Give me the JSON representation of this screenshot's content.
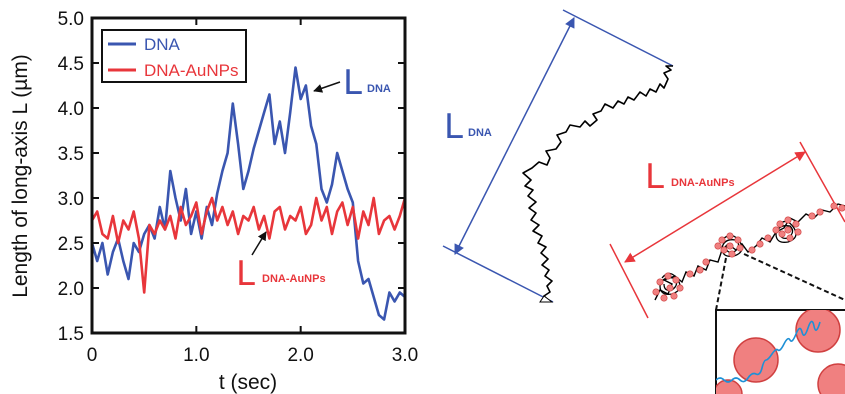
{
  "chart_data": {
    "type": "line",
    "xlabel": "t (sec)",
    "ylabel": "Length of long-axis L (µm)",
    "xlim": [
      0,
      3.0
    ],
    "ylim": [
      1.5,
      5.0
    ],
    "x_ticks": [
      "0",
      "1.0",
      "2.0",
      "3.0"
    ],
    "y_ticks": [
      "1.5",
      "2.0",
      "2.5",
      "3.0",
      "3.5",
      "4.0",
      "4.5",
      "5.0"
    ],
    "grid": false,
    "legend_position": "top-left",
    "series": [
      {
        "name": "DNA",
        "color": "#3a56b0",
        "x": [
          0.0,
          0.05,
          0.1,
          0.15,
          0.2,
          0.25,
          0.3,
          0.35,
          0.4,
          0.45,
          0.5,
          0.55,
          0.6,
          0.65,
          0.7,
          0.75,
          0.8,
          0.85,
          0.9,
          0.95,
          1.0,
          1.05,
          1.1,
          1.15,
          1.2,
          1.25,
          1.3,
          1.35,
          1.4,
          1.45,
          1.5,
          1.55,
          1.6,
          1.65,
          1.7,
          1.75,
          1.8,
          1.85,
          1.9,
          1.95,
          2.0,
          2.05,
          2.1,
          2.15,
          2.2,
          2.25,
          2.3,
          2.35,
          2.4,
          2.45,
          2.5,
          2.55,
          2.6,
          2.65,
          2.7,
          2.75,
          2.8,
          2.85,
          2.9,
          2.95,
          3.0
        ],
        "y": [
          2.5,
          2.3,
          2.5,
          2.15,
          2.4,
          2.55,
          2.3,
          2.1,
          2.5,
          2.4,
          2.6,
          2.7,
          2.55,
          2.9,
          2.65,
          3.3,
          3.0,
          2.75,
          3.1,
          2.6,
          2.85,
          2.55,
          2.9,
          2.7,
          3.05,
          3.3,
          3.5,
          4.05,
          3.6,
          3.1,
          3.3,
          3.55,
          3.75,
          3.95,
          4.15,
          3.6,
          3.85,
          3.5,
          3.95,
          4.45,
          4.1,
          4.25,
          3.8,
          3.6,
          3.1,
          2.95,
          3.15,
          3.5,
          3.3,
          3.1,
          2.95,
          2.3,
          2.05,
          2.1,
          1.9,
          1.7,
          1.65,
          1.95,
          1.85,
          1.95,
          1.9
        ]
      },
      {
        "name": "DNA-AuNPs",
        "color": "#e8363b",
        "x": [
          0.0,
          0.05,
          0.1,
          0.15,
          0.2,
          0.25,
          0.3,
          0.35,
          0.4,
          0.45,
          0.5,
          0.55,
          0.6,
          0.65,
          0.7,
          0.75,
          0.8,
          0.85,
          0.9,
          0.95,
          1.0,
          1.05,
          1.1,
          1.15,
          1.2,
          1.25,
          1.3,
          1.35,
          1.4,
          1.45,
          1.5,
          1.55,
          1.6,
          1.65,
          1.7,
          1.75,
          1.8,
          1.85,
          1.9,
          1.95,
          2.0,
          2.05,
          2.1,
          2.15,
          2.2,
          2.25,
          2.3,
          2.35,
          2.4,
          2.45,
          2.5,
          2.55,
          2.6,
          2.65,
          2.7,
          2.75,
          2.8,
          2.85,
          2.9,
          2.95,
          3.0
        ],
        "y": [
          2.75,
          2.85,
          2.6,
          2.55,
          2.8,
          2.5,
          2.75,
          2.65,
          2.85,
          2.55,
          1.95,
          2.7,
          2.6,
          2.75,
          2.65,
          2.8,
          2.55,
          2.9,
          2.7,
          2.8,
          2.95,
          2.6,
          2.85,
          3.0,
          2.75,
          2.9,
          2.7,
          2.85,
          2.6,
          2.8,
          2.75,
          2.9,
          2.65,
          2.8,
          2.55,
          2.85,
          2.9,
          2.65,
          2.8,
          2.75,
          2.9,
          2.6,
          2.7,
          3.0,
          2.75,
          2.9,
          2.6,
          2.85,
          2.95,
          2.7,
          2.9,
          2.55,
          2.85,
          2.7,
          3.0,
          2.6,
          2.75,
          2.8,
          2.65,
          2.8,
          3.0
        ]
      }
    ],
    "annotations": [
      {
        "name": "L-DNA-plot-label",
        "main": "L",
        "sub": "DNA",
        "color": "#3a56b0",
        "points_to": {
          "x": 2.05,
          "y": 4.45
        }
      },
      {
        "name": "L-DNA-AuNPs-plot-label",
        "main": "L",
        "sub": "DNA-AuNPs",
        "color": "#e8363b",
        "points_to": {
          "x": 1.65,
          "y": 2.55
        }
      }
    ]
  },
  "schematic": {
    "dna_label": {
      "main": "L",
      "sub": "DNA",
      "color": "#3a56b0"
    },
    "dna_aunp_label": {
      "main": "L",
      "sub": "DNA-AuNPs",
      "color": "#e8363b"
    },
    "colors": {
      "dna_strand": "#000000",
      "nanoparticle_fill": "#f08080",
      "nanoparticle_stroke": "#d04040",
      "inset_strand": "#1e90d6"
    }
  }
}
